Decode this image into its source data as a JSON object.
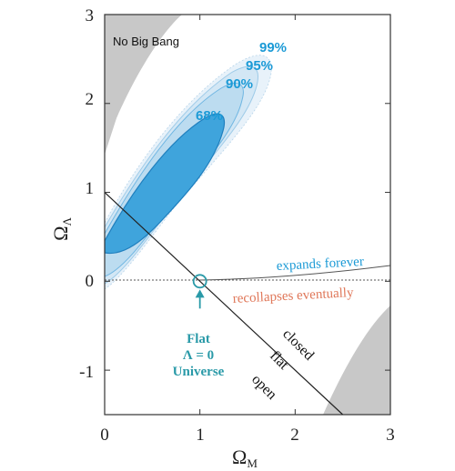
{
  "chart_data": {
    "type": "contour",
    "xlabel": {
      "main": "Ω",
      "sub": "M"
    },
    "ylabel": {
      "main": "Ω",
      "sub": "Λ"
    },
    "xlim": [
      0,
      3
    ],
    "ylim": [
      -1.5,
      3
    ],
    "x_ticks": [
      "0",
      "1",
      "2",
      "3"
    ],
    "y_ticks": [
      "3",
      "2",
      "1",
      "0",
      "-1"
    ],
    "grid": false,
    "confidence_contours": [
      {
        "label": "68%",
        "color": "#1b9ad6"
      },
      {
        "label": "90%",
        "color": "#1b9ad6"
      },
      {
        "label": "95%",
        "color": "#1b9ad6"
      },
      {
        "label": "99%",
        "color": "#1b9ad6"
      }
    ],
    "regions": {
      "no_big_bang": "No Big Bang"
    },
    "flat_line": {
      "points": [
        [
          0,
          1
        ],
        [
          2.5,
          -1.5
        ]
      ]
    },
    "marker": {
      "x": 1,
      "y": 0,
      "label_lines": [
        "Flat",
        "Λ = 0",
        "Universe"
      ],
      "color": "#2a9aa8"
    },
    "curve_labels": {
      "above": "expands forever",
      "above_color": "#1b9ad6",
      "below": "recollapses eventually",
      "below_color": "#e0785a"
    },
    "geometry_labels": [
      "closed",
      "flat",
      "open"
    ],
    "colors": {
      "shade_gray": "#c8c8c8",
      "contour_fill": "#3fa4dc",
      "contour_outer": "#dcebf6"
    }
  }
}
